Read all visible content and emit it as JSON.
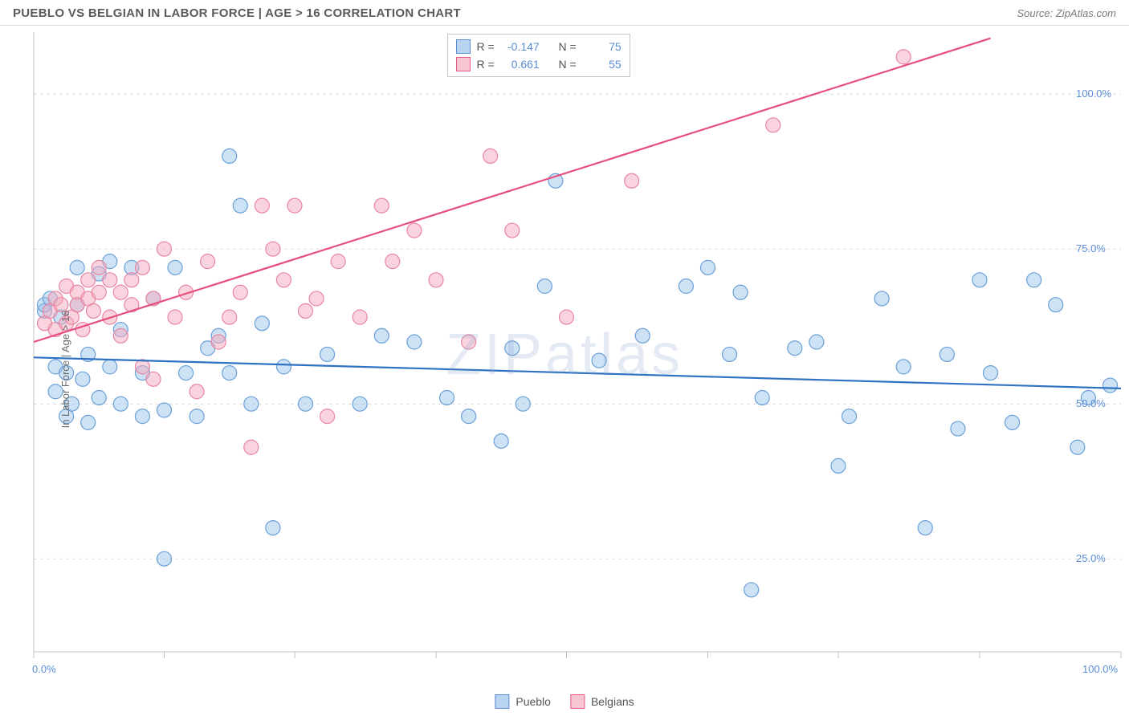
{
  "header": {
    "title": "PUEBLO VS BELGIAN IN LABOR FORCE | AGE > 16 CORRELATION CHART",
    "source": "Source: ZipAtlas.com"
  },
  "chart": {
    "type": "scatter",
    "ylabel": "In Labor Force | Age > 16",
    "xlim": [
      0,
      100
    ],
    "ylim": [
      10,
      110
    ],
    "xticks": [
      0,
      100
    ],
    "xtick_labels": [
      "0.0%",
      "100.0%"
    ],
    "xtick_minor": [
      12,
      24,
      37,
      49,
      62,
      74,
      87
    ],
    "yticks": [
      25,
      50,
      75,
      100
    ],
    "ytick_labels": [
      "25.0%",
      "50.0%",
      "75.0%",
      "100.0%"
    ],
    "background_color": "#ffffff",
    "grid_color": "#dcdcdc",
    "grid_dash": "4,4",
    "axis_color": "#c0c0c0",
    "marker_radius": 9,
    "marker_stroke_width": 1.2,
    "trend_width": 2.2,
    "watermark": "ZIPatlas",
    "legend_top": [
      {
        "swatch_fill": "#b9d4f0",
        "swatch_stroke": "#5b8dd6",
        "r_label": "R =",
        "r_value": "-0.147",
        "n_label": "N =",
        "n_value": "75"
      },
      {
        "swatch_fill": "#f7c6d2",
        "swatch_stroke": "#e85a84",
        "r_label": "R =",
        "r_value": "0.661",
        "n_label": "N =",
        "n_value": "55"
      }
    ],
    "legend_bottom": [
      {
        "swatch_fill": "#b9d4f0",
        "swatch_stroke": "#5b8dd6",
        "label": "Pueblo"
      },
      {
        "swatch_fill": "#f7c6d2",
        "swatch_stroke": "#e85a84",
        "label": "Belgians"
      }
    ],
    "series": [
      {
        "name": "Pueblo",
        "fill": "rgba(146,190,232,0.45)",
        "stroke": "#6aa0d8",
        "trend_color": "#2f72c2",
        "trend": {
          "x1": 0,
          "y1": 57.5,
          "x2": 100,
          "y2": 52.5
        },
        "points": [
          [
            1,
            65
          ],
          [
            1,
            66
          ],
          [
            1.5,
            67
          ],
          [
            2,
            52
          ],
          [
            2,
            56
          ],
          [
            2.5,
            64
          ],
          [
            3,
            48
          ],
          [
            3,
            55
          ],
          [
            3.5,
            50
          ],
          [
            4,
            66
          ],
          [
            4,
            72
          ],
          [
            4.5,
            54
          ],
          [
            5,
            47
          ],
          [
            5,
            58
          ],
          [
            6,
            71
          ],
          [
            6,
            51
          ],
          [
            7,
            73
          ],
          [
            7,
            56
          ],
          [
            8,
            50
          ],
          [
            8,
            62
          ],
          [
            9,
            72
          ],
          [
            10,
            48
          ],
          [
            10,
            55
          ],
          [
            11,
            67
          ],
          [
            12,
            25
          ],
          [
            12,
            49
          ],
          [
            13,
            72
          ],
          [
            14,
            55
          ],
          [
            15,
            48
          ],
          [
            16,
            59
          ],
          [
            17,
            61
          ],
          [
            18,
            55
          ],
          [
            18,
            90
          ],
          [
            19,
            82
          ],
          [
            20,
            50
          ],
          [
            21,
            63
          ],
          [
            22,
            30
          ],
          [
            23,
            56
          ],
          [
            25,
            50
          ],
          [
            27,
            58
          ],
          [
            30,
            50
          ],
          [
            32,
            61
          ],
          [
            35,
            60
          ],
          [
            38,
            51
          ],
          [
            40,
            48
          ],
          [
            43,
            44
          ],
          [
            44,
            59
          ],
          [
            45,
            50
          ],
          [
            47,
            69
          ],
          [
            48,
            86
          ],
          [
            52,
            57
          ],
          [
            56,
            61
          ],
          [
            60,
            69
          ],
          [
            62,
            72
          ],
          [
            64,
            58
          ],
          [
            65,
            68
          ],
          [
            66,
            20
          ],
          [
            67,
            51
          ],
          [
            70,
            59
          ],
          [
            72,
            60
          ],
          [
            74,
            40
          ],
          [
            75,
            48
          ],
          [
            78,
            67
          ],
          [
            80,
            56
          ],
          [
            82,
            30
          ],
          [
            84,
            58
          ],
          [
            85,
            46
          ],
          [
            87,
            70
          ],
          [
            88,
            55
          ],
          [
            90,
            47
          ],
          [
            92,
            70
          ],
          [
            94,
            66
          ],
          [
            96,
            43
          ],
          [
            97,
            51
          ],
          [
            99,
            53
          ]
        ]
      },
      {
        "name": "Belgians",
        "fill": "rgba(243,170,190,0.50)",
        "stroke": "#e985a3",
        "trend_color": "#e64e7e",
        "trend": {
          "x1": 0,
          "y1": 60,
          "x2": 88,
          "y2": 109
        },
        "points": [
          [
            1,
            63
          ],
          [
            1.5,
            65
          ],
          [
            2,
            62
          ],
          [
            2,
            67
          ],
          [
            2.5,
            66
          ],
          [
            3,
            63
          ],
          [
            3,
            69
          ],
          [
            3.5,
            64
          ],
          [
            4,
            68
          ],
          [
            4,
            66
          ],
          [
            4.5,
            62
          ],
          [
            5,
            67
          ],
          [
            5,
            70
          ],
          [
            5.5,
            65
          ],
          [
            6,
            72
          ],
          [
            6,
            68
          ],
          [
            7,
            64
          ],
          [
            7,
            70
          ],
          [
            8,
            68
          ],
          [
            8,
            61
          ],
          [
            9,
            70
          ],
          [
            9,
            66
          ],
          [
            10,
            56
          ],
          [
            10,
            72
          ],
          [
            11,
            67
          ],
          [
            11,
            54
          ],
          [
            12,
            75
          ],
          [
            13,
            64
          ],
          [
            14,
            68
          ],
          [
            15,
            52
          ],
          [
            16,
            73
          ],
          [
            17,
            60
          ],
          [
            18,
            64
          ],
          [
            19,
            68
          ],
          [
            20,
            43
          ],
          [
            21,
            82
          ],
          [
            22,
            75
          ],
          [
            23,
            70
          ],
          [
            24,
            82
          ],
          [
            25,
            65
          ],
          [
            26,
            67
          ],
          [
            27,
            48
          ],
          [
            28,
            73
          ],
          [
            30,
            64
          ],
          [
            32,
            82
          ],
          [
            33,
            73
          ],
          [
            35,
            78
          ],
          [
            37,
            70
          ],
          [
            40,
            60
          ],
          [
            42,
            90
          ],
          [
            44,
            78
          ],
          [
            49,
            64
          ],
          [
            55,
            86
          ],
          [
            68,
            95
          ],
          [
            80,
            106
          ]
        ]
      }
    ]
  }
}
